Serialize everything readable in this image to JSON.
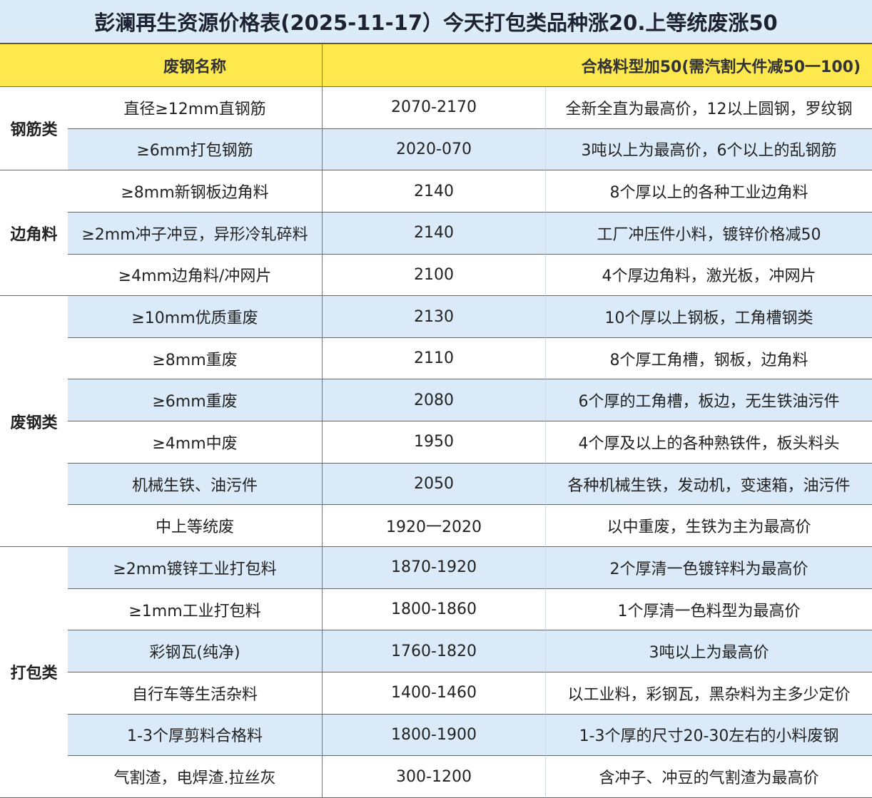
{
  "title": "彭澜再生资源价格表(2025-11-17）今天打包类品种涨20.上等统废涨50",
  "header": {
    "category": "",
    "name": "废钢名称",
    "price": "",
    "note": "合格料型加50(需汽割大件减50一100)"
  },
  "colors": {
    "title_bg": "#dcebf8",
    "header_bg": "#fde84e",
    "stripe_bg": "#dbeaf8"
  },
  "groups": [
    {
      "category": "钢筋类",
      "rows": [
        {
          "name": "直径≥12mm直钢筋",
          "price": "2070-2170",
          "note": "全新全直为最高价，12以上圆钢，罗纹钢"
        },
        {
          "name": "≥6mm打包钢筋",
          "price": "2020-070",
          "note": "3吨以上为最高价，6个以上的乱钢筋"
        }
      ]
    },
    {
      "category": "边角料",
      "rows": [
        {
          "name": "≥8mm新钢板边角料",
          "price": "2140",
          "note": "8个厚以上的各种工业边角料"
        },
        {
          "name": "≥2mm冲子冲豆，异形冷轧碎料",
          "price": "2140",
          "note": "工厂冲压件小料，镀锌价格减50"
        },
        {
          "name": "≥4mm边角料/冲网片",
          "price": "2100",
          "note": "4个厚边角料，激光板，冲网片"
        }
      ]
    },
    {
      "category": "废钢类",
      "rows": [
        {
          "name": "≥10mm优质重废",
          "price": "2130",
          "note": "10个厚以上钢板，工角槽钢类"
        },
        {
          "name": "≥8mm重废",
          "price": "2110",
          "note": "8个厚工角槽，钢板，边角料"
        },
        {
          "name": "≥6mm重废",
          "price": "2080",
          "note": "6个厚的工角槽，板边，无生铁油污件"
        },
        {
          "name": "≥4mm中废",
          "price": "1950",
          "note": "4个厚及以上的各种熟铁件，板头料头"
        },
        {
          "name": "机械生铁、油污件",
          "price": "2050",
          "note": "各种机械生铁，发动机，变速箱，油污件"
        },
        {
          "name": "中上等统废",
          "price": "1920一2020",
          "note": "以中重废，生铁为主为最高价"
        }
      ]
    },
    {
      "category": "打包类",
      "rows": [
        {
          "name": "≥2mm镀锌工业打包料",
          "price": "1870-1920",
          "note": "2个厚清一色镀锌料为最高价"
        },
        {
          "name": "≥1mm工业打包料",
          "price": "1800-1860",
          "note": "1个厚清一色料型为最高价"
        },
        {
          "name": "彩钢瓦(纯净)",
          "price": "1760-1820",
          "note": "3吨以上为最高价"
        },
        {
          "name": "自行车等生活杂料",
          "price": "1400-1460",
          "note": "以工业料，彩钢瓦，黑杂料为主多少定价"
        },
        {
          "name": "1-3个厚剪料合格料",
          "price": "1800-1900",
          "note": "1-3个厚的尺寸20-30左右的小料废钢"
        },
        {
          "name": "气割渣，电焊渣.拉丝灰",
          "price": "300-1200",
          "note": "含冲子、冲豆的气割渣为最高价"
        }
      ]
    }
  ]
}
